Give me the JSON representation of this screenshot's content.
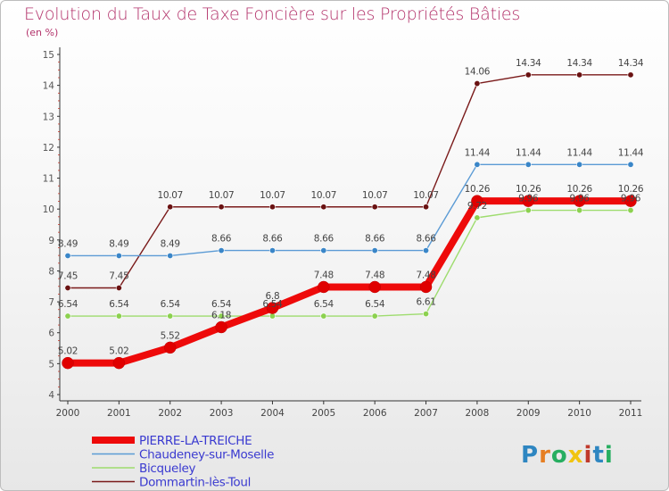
{
  "title": "Evolution du Taux de Taxe Foncière sur les Propriétés Bâties",
  "units_label": "(en %)",
  "logo_text": "Proxiti",
  "chart_data": {
    "type": "line",
    "title": "Evolution du Taux de Taxe Foncière sur les Propriétés Bâties",
    "ylabel": "(en %)",
    "xlabel": "",
    "x": [
      "2000",
      "2001",
      "2002",
      "2003",
      "2004",
      "2005",
      "2006",
      "2007",
      "2008",
      "2009",
      "2010",
      "2011"
    ],
    "ylim": [
      4,
      15
    ],
    "yticks": [
      4,
      5,
      6,
      7,
      8,
      9,
      10,
      11,
      12,
      13,
      14,
      15
    ],
    "grid": false,
    "legend_position": "bottom-left",
    "series": [
      {
        "name": "Dommartin-lès-Toul",
        "color": "#7a1a1a",
        "marker_color": "#6a1212",
        "values": [
          7.45,
          7.45,
          10.07,
          10.07,
          10.07,
          10.07,
          10.07,
          10.07,
          14.06,
          14.34,
          14.34,
          14.34
        ],
        "labels": [
          "7.45",
          "7.45",
          "10.07",
          "10.07",
          "10.07",
          "10.07",
          "10.07",
          "10.07",
          "14.06",
          "14.34",
          "14.34",
          "14.34"
        ]
      },
      {
        "name": "Chaudeney-sur-Moselle",
        "color": "#5b9bd5",
        "marker_color": "#3a86c8",
        "values": [
          8.49,
          8.49,
          8.49,
          8.66,
          8.66,
          8.66,
          8.66,
          8.66,
          11.44,
          11.44,
          11.44,
          11.44
        ],
        "labels": [
          "8.49",
          "8.49",
          "8.49",
          "8.66",
          "8.66",
          "8.66",
          "8.66",
          "8.66",
          "11.44",
          "11.44",
          "11.44",
          "11.44"
        ]
      },
      {
        "name": "Bicqueley",
        "color": "#9edc6e",
        "marker_color": "#8cd14f",
        "values": [
          6.54,
          6.54,
          6.54,
          6.54,
          6.54,
          6.54,
          6.54,
          6.61,
          9.72,
          9.96,
          9.96,
          9.96
        ],
        "labels": [
          "6.54",
          "6.54",
          "6.54",
          "6.54",
          "6.54",
          "6.54",
          "6.54",
          "6.61",
          "9.72",
          "9.96",
          "9.96",
          "9.96"
        ]
      },
      {
        "name": "PIERRE-LA-TREICHE",
        "color": "#ee0a0a",
        "marker_color": "#e00000",
        "values": [
          5.02,
          5.02,
          5.52,
          6.18,
          6.8,
          7.48,
          7.48,
          7.48,
          10.26,
          10.26,
          10.26,
          10.26
        ],
        "labels": [
          "5.02",
          "5.02",
          "5.52",
          "6.18",
          "6.8",
          "7.48",
          "7.48",
          "7.48",
          "10.26",
          "10.26",
          "10.26",
          "10.26"
        ]
      }
    ],
    "legend_order": [
      "PIERRE-LA-TREICHE",
      "Chaudeney-sur-Moselle",
      "Bicqueley",
      "Dommartin-lès-Toul"
    ]
  }
}
